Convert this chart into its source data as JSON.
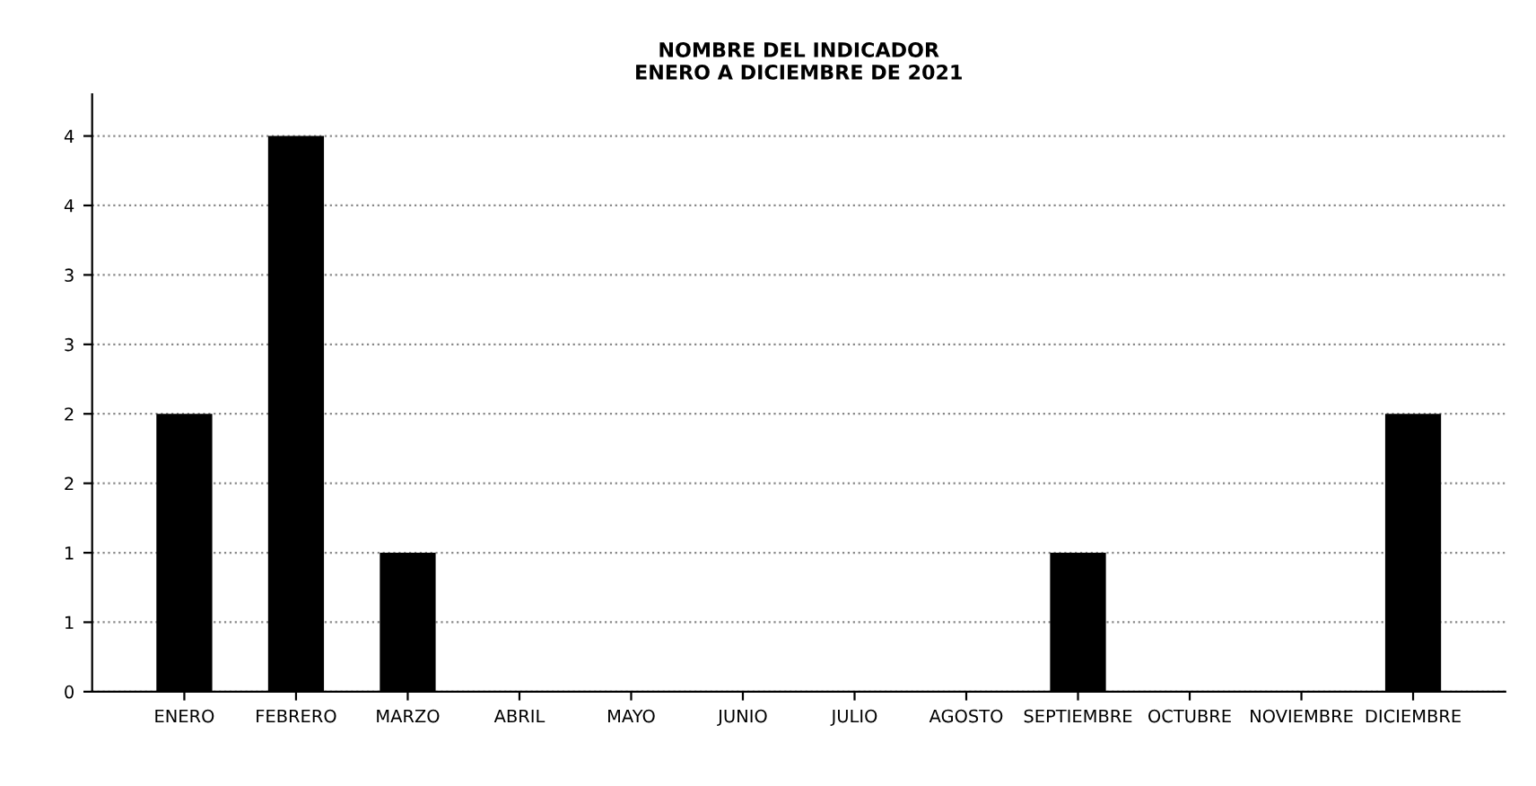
{
  "chart_data": {
    "type": "bar",
    "title": "NOMBRE DEL INDICADOR\nENERO A DICIEMBRE DE 2021",
    "categories": [
      "ENERO",
      "FEBRERO",
      "MARZO",
      "ABRIL",
      "MAYO",
      "JUNIO",
      "JULIO",
      "AGOSTO",
      "SEPTIEMBRE",
      "OCTUBRE",
      "NOVIEMBRE",
      "DICIEMBRE"
    ],
    "values": [
      2,
      4,
      1,
      0,
      0,
      0,
      0,
      0,
      1,
      0,
      0,
      2
    ],
    "color": "#000000",
    "ylim": [
      0,
      4.3
    ],
    "yticks": [
      0,
      {
        "value": 0.5,
        "label": "1"
      },
      1,
      {
        "value": 1.5,
        "label": "2"
      },
      2,
      {
        "value": 2.5,
        "label": "3"
      },
      3,
      {
        "value": 3.5,
        "label": "4"
      },
      4
    ],
    "grid": "y"
  }
}
